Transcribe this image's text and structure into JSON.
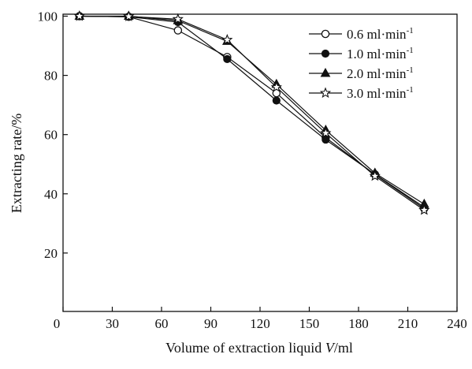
{
  "chart_data": {
    "type": "line",
    "title": "",
    "xlabel_pre": "Volume of extraction liquid ",
    "xlabel_var": "V",
    "xlabel_post": "/ml",
    "ylabel": "Extracting rate/%",
    "xlim": [
      0,
      240
    ],
    "ylim": [
      0,
      100
    ],
    "x_ticks": [
      0,
      30,
      60,
      90,
      120,
      150,
      180,
      210,
      240
    ],
    "y_ticks": [
      20,
      40,
      60,
      80,
      100
    ],
    "grid": false,
    "legend_position": "top-right",
    "x": [
      10,
      40,
      70,
      100,
      130,
      160,
      190,
      220
    ],
    "series": [
      {
        "name": "0.6 ml·min",
        "sup": "-1",
        "marker": "circle-open",
        "values": [
          100,
          99.8,
          95.2,
          86.2,
          74.0,
          59.0,
          46.5,
          35.0
        ]
      },
      {
        "name": "1.0 ml·min",
        "sup": "-1",
        "marker": "circle-filled",
        "values": [
          100,
          99.8,
          98.0,
          85.5,
          71.5,
          58.3,
          46.6,
          35.5
        ]
      },
      {
        "name": "2.0 ml·min",
        "sup": "-1",
        "marker": "triangle",
        "values": [
          100,
          100,
          98.5,
          91.5,
          77.0,
          61.5,
          47.0,
          36.5
        ]
      },
      {
        "name": "3.0 ml·min",
        "sup": "-1",
        "marker": "star-open",
        "values": [
          100,
          99.9,
          99.0,
          92.0,
          76.0,
          60.5,
          46.0,
          34.5
        ]
      }
    ]
  }
}
